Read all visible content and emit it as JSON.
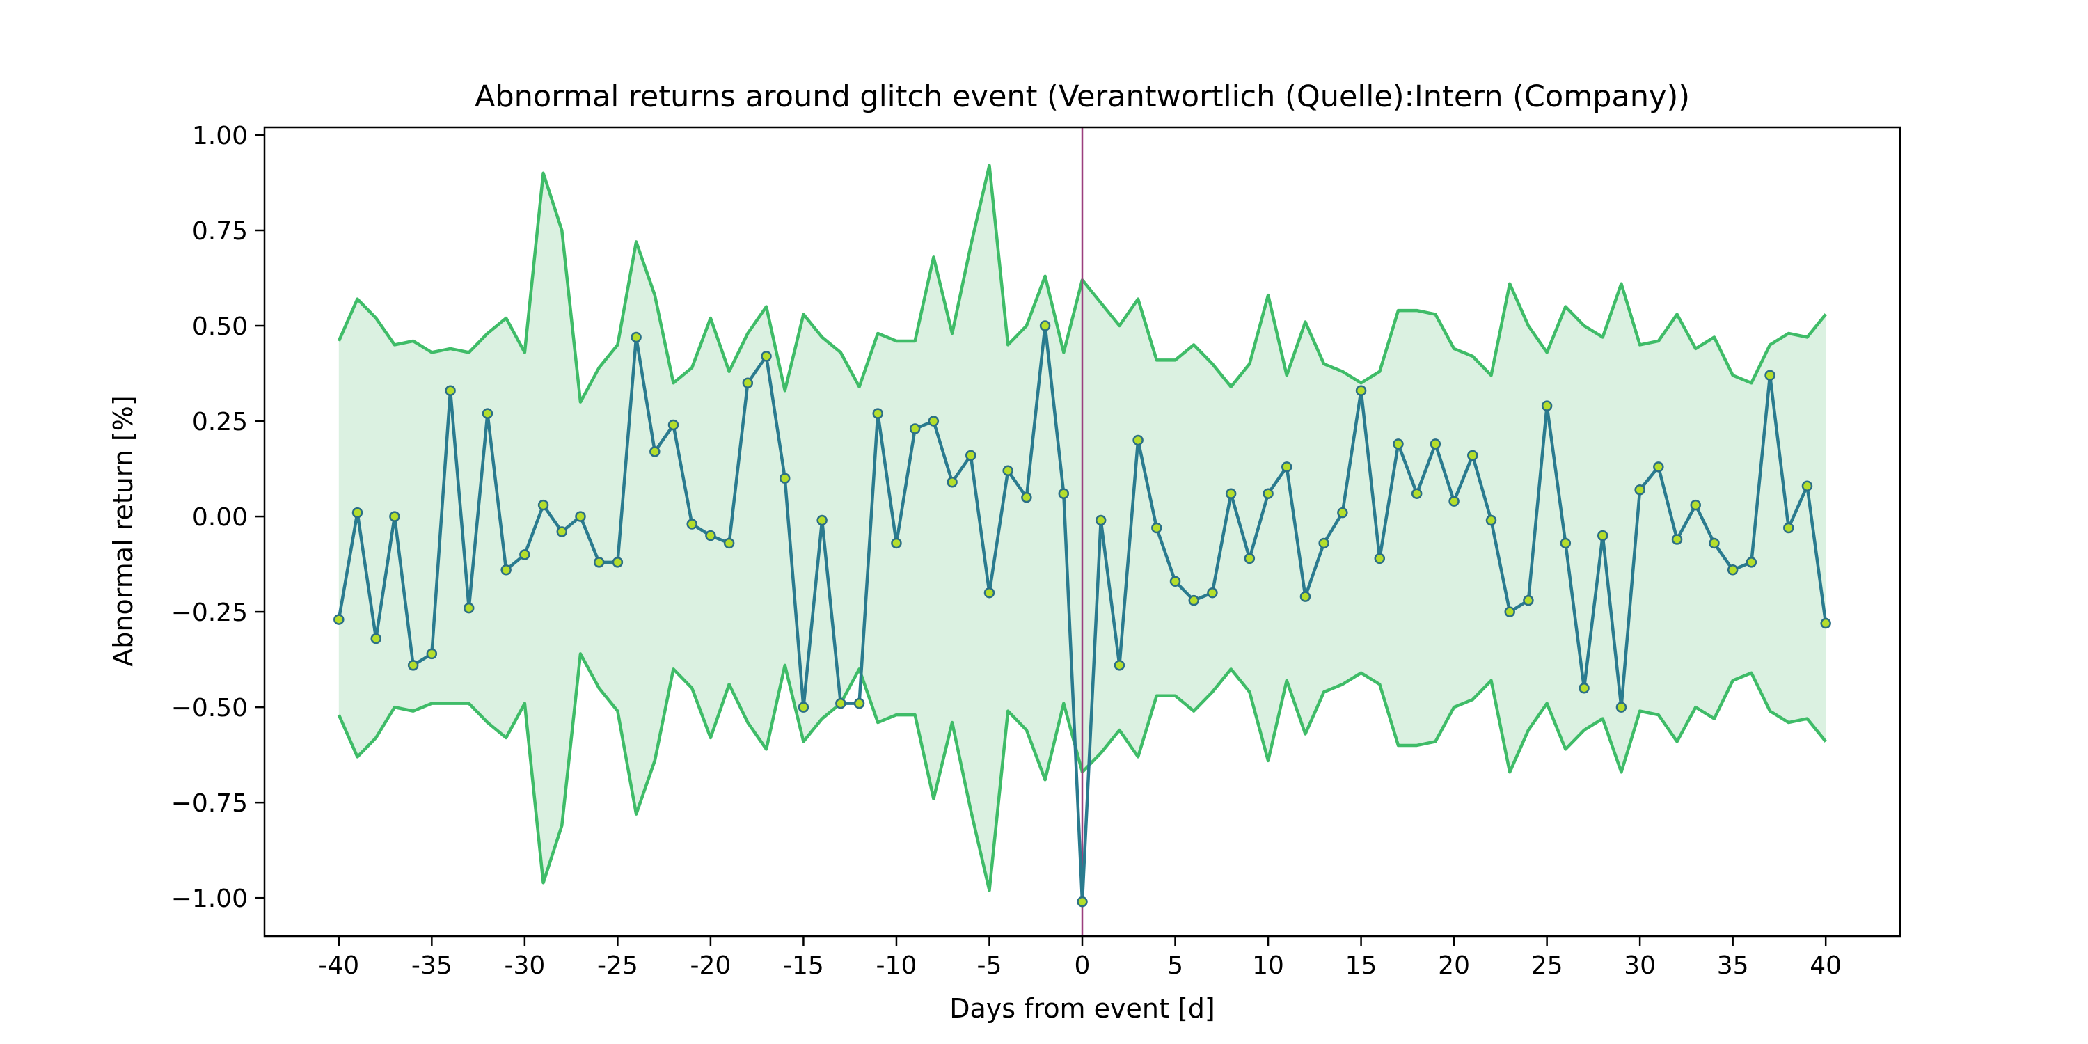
{
  "chart_data": {
    "type": "line",
    "title": "Abnormal returns around glitch event (Verantwortlich (Quelle):Intern (Company))",
    "xlabel": "Days from event [d]",
    "ylabel": "Abnormal return [%]",
    "xlim": [
      -44,
      44
    ],
    "ylim": [
      -1.1,
      1.02
    ],
    "xticks": [
      -40,
      -35,
      -30,
      -25,
      -20,
      -15,
      -10,
      -5,
      0,
      5,
      10,
      15,
      20,
      25,
      30,
      35,
      40
    ],
    "xtick_labels": [
      "-40",
      "-35",
      "-30",
      "-25",
      "-20",
      "-15",
      "-10",
      "-5",
      "0",
      "5",
      "10",
      "15",
      "20",
      "25",
      "30",
      "35",
      "40"
    ],
    "yticks": [
      1.0,
      0.75,
      0.5,
      0.25,
      0.0,
      -0.25,
      -0.5,
      -0.75,
      -1.0
    ],
    "ytick_labels": [
      "1.00",
      "0.75",
      "0.50",
      "0.25",
      "0.00",
      "−0.25",
      "−0.50",
      "−0.75",
      "−1.00"
    ],
    "grid": false,
    "event_line_x": 0,
    "x": [
      -40,
      -39,
      -38,
      -37,
      -36,
      -35,
      -34,
      -33,
      -32,
      -31,
      -30,
      -29,
      -28,
      -27,
      -26,
      -25,
      -24,
      -23,
      -22,
      -21,
      -20,
      -19,
      -18,
      -17,
      -16,
      -15,
      -14,
      -13,
      -12,
      -11,
      -10,
      -9,
      -8,
      -7,
      -6,
      -5,
      -4,
      -3,
      -2,
      -1,
      0,
      1,
      2,
      3,
      4,
      5,
      6,
      7,
      8,
      9,
      10,
      11,
      12,
      13,
      14,
      15,
      16,
      17,
      18,
      19,
      20,
      21,
      22,
      23,
      24,
      25,
      26,
      27,
      28,
      29,
      30,
      31,
      32,
      33,
      34,
      35,
      36,
      37,
      38,
      39,
      40
    ],
    "series": [
      {
        "role": "abnormal-return",
        "values": [
          -0.27,
          0.01,
          -0.32,
          0.0,
          -0.39,
          -0.36,
          0.33,
          -0.24,
          0.27,
          -0.14,
          -0.1,
          0.03,
          -0.04,
          0.0,
          -0.12,
          -0.12,
          0.47,
          0.17,
          0.24,
          -0.02,
          -0.05,
          -0.07,
          0.35,
          0.42,
          0.1,
          -0.5,
          -0.01,
          -0.49,
          -0.49,
          0.27,
          -0.07,
          0.23,
          0.25,
          0.09,
          0.16,
          -0.2,
          0.12,
          0.05,
          0.5,
          0.06,
          -1.01,
          -0.01,
          -0.39,
          0.2,
          -0.03,
          -0.17,
          -0.22,
          -0.2,
          0.06,
          -0.11,
          0.06,
          0.13,
          -0.21,
          -0.07,
          0.01,
          0.33,
          -0.11,
          0.19,
          0.06,
          0.19,
          0.04,
          0.16,
          -0.01,
          -0.25,
          -0.22,
          0.29,
          -0.07,
          -0.45,
          -0.05,
          -0.5,
          0.07,
          0.13,
          -0.06,
          0.03,
          -0.07,
          -0.14,
          -0.12,
          0.37,
          -0.03,
          0.08,
          -0.28
        ]
      },
      {
        "role": "upper-band",
        "values": [
          0.46,
          0.57,
          0.52,
          0.45,
          0.46,
          0.43,
          0.44,
          0.43,
          0.48,
          0.52,
          0.43,
          0.9,
          0.75,
          0.3,
          0.39,
          0.45,
          0.72,
          0.58,
          0.35,
          0.39,
          0.52,
          0.38,
          0.48,
          0.55,
          0.33,
          0.53,
          0.47,
          0.43,
          0.34,
          0.48,
          0.46,
          0.46,
          0.68,
          0.48,
          0.71,
          0.92,
          0.45,
          0.5,
          0.63,
          0.43,
          0.62,
          0.56,
          0.5,
          0.57,
          0.41,
          0.41,
          0.45,
          0.4,
          0.34,
          0.4,
          0.58,
          0.37,
          0.51,
          0.4,
          0.38,
          0.35,
          0.38,
          0.54,
          0.54,
          0.53,
          0.44,
          0.42,
          0.37,
          0.61,
          0.5,
          0.43,
          0.55,
          0.5,
          0.47,
          0.61,
          0.45,
          0.46,
          0.53,
          0.44,
          0.47,
          0.37,
          0.35,
          0.45,
          0.48,
          0.47,
          0.53
        ]
      },
      {
        "role": "lower-band",
        "values": [
          -0.52,
          -0.63,
          -0.58,
          -0.5,
          -0.51,
          -0.49,
          -0.49,
          -0.49,
          -0.54,
          -0.58,
          -0.49,
          -0.96,
          -0.81,
          -0.36,
          -0.45,
          -0.51,
          -0.78,
          -0.64,
          -0.4,
          -0.45,
          -0.58,
          -0.44,
          -0.54,
          -0.61,
          -0.39,
          -0.59,
          -0.53,
          -0.49,
          -0.4,
          -0.54,
          -0.52,
          -0.52,
          -0.74,
          -0.54,
          -0.77,
          -0.98,
          -0.51,
          -0.56,
          -0.69,
          -0.49,
          -0.67,
          -0.62,
          -0.56,
          -0.63,
          -0.47,
          -0.47,
          -0.51,
          -0.46,
          -0.4,
          -0.46,
          -0.64,
          -0.43,
          -0.57,
          -0.46,
          -0.44,
          -0.41,
          -0.44,
          -0.6,
          -0.6,
          -0.59,
          -0.5,
          -0.48,
          -0.43,
          -0.67,
          -0.56,
          -0.49,
          -0.61,
          -0.56,
          -0.53,
          -0.67,
          -0.51,
          -0.52,
          -0.59,
          -0.5,
          -0.53,
          -0.43,
          -0.41,
          -0.51,
          -0.54,
          -0.53,
          -0.59
        ]
      }
    ],
    "colors": {
      "return_line": "#2a7b8f",
      "marker_fill": "#b5de2b",
      "marker_edge": "#2a6f86",
      "band_line": "#3fbc68",
      "band_fill": "#dbf1e1",
      "event_line": "#9b3f7e",
      "axes": "#000000"
    }
  }
}
